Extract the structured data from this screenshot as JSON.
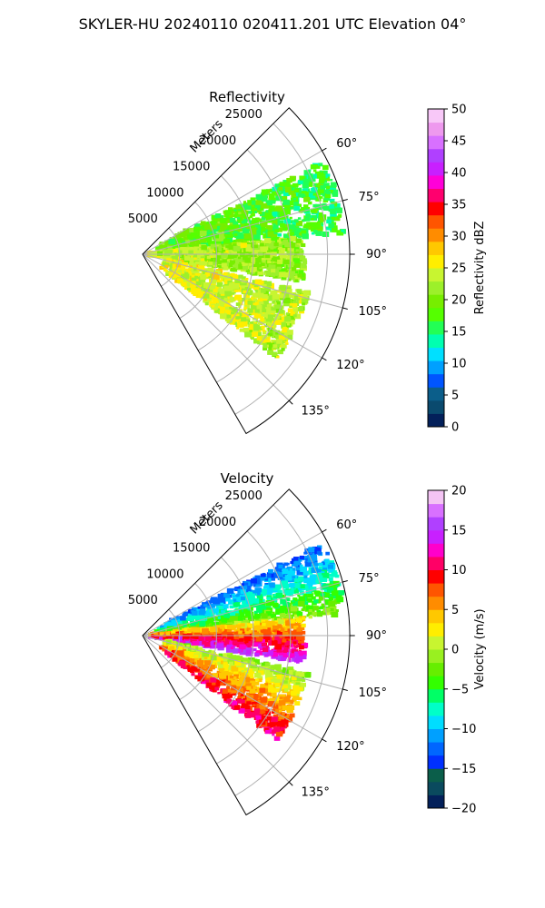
{
  "figure": {
    "suptitle": "SKYLER-HU  20240110  020411.201 UTC Elevation 04°"
  },
  "chart_data": [
    {
      "type": "heatmap",
      "subtype": "polar-sector-ppi",
      "title": "Reflectivity",
      "range_axis_label": "Meters",
      "range_ticks": [
        5000,
        10000,
        15000,
        20000,
        25000
      ],
      "range_tick_labels": [
        "5000",
        "10000",
        "15000",
        "20000",
        "25000"
      ],
      "range_lim": [
        0,
        28000
      ],
      "azimuth_lim_deg": [
        45,
        150
      ],
      "azimuth_ticks": [
        60,
        75,
        90,
        105,
        120,
        135
      ],
      "azimuth_tick_labels": [
        "60°",
        "75°",
        "90°",
        "105°",
        "120°",
        "135°"
      ],
      "grid": true,
      "colorbar": {
        "label": "Reflectivity dBZ",
        "min": 0,
        "max": 50,
        "ticks": [
          0,
          5,
          10,
          15,
          20,
          25,
          30,
          35,
          40,
          45,
          50
        ],
        "tick_labels": [
          "0",
          "5",
          "10",
          "15",
          "20",
          "25",
          "30",
          "35",
          "40",
          "45",
          "50"
        ],
        "colors": [
          "#03205a",
          "#0a4a6e",
          "#0b5e8a",
          "#0055ff",
          "#00a0ff",
          "#00e0ff",
          "#00ffb0",
          "#22ff55",
          "#55ff00",
          "#77ee00",
          "#9cf02a",
          "#c8f530",
          "#ffee00",
          "#ffc800",
          "#ff8c00",
          "#ff5500",
          "#ff0000",
          "#ff006e",
          "#ff00d8",
          "#c820ff",
          "#b040ff",
          "#d870ff",
          "#ee99ee",
          "#f8c8f8"
        ]
      },
      "bands": [
        {
          "name": "upper",
          "azimuth_deg": [
            63,
            84
          ],
          "range_m": [
            2000,
            27500
          ],
          "value_dBZ": 20
        },
        {
          "name": "core",
          "azimuth_deg": [
            84,
            100
          ],
          "range_m": [
            1000,
            22000
          ],
          "value_dBZ": 24
        },
        {
          "name": "lower",
          "azimuth_deg": [
            103,
            128
          ],
          "range_m": [
            3000,
            23000
          ],
          "value_dBZ": 26
        }
      ]
    },
    {
      "type": "heatmap",
      "subtype": "polar-sector-ppi",
      "title": "Velocity",
      "range_axis_label": "Meters",
      "range_ticks": [
        5000,
        10000,
        15000,
        20000,
        25000
      ],
      "range_tick_labels": [
        "5000",
        "10000",
        "15000",
        "20000",
        "25000"
      ],
      "range_lim": [
        0,
        28000
      ],
      "azimuth_lim_deg": [
        45,
        150
      ],
      "azimuth_ticks": [
        60,
        75,
        90,
        105,
        120,
        135
      ],
      "azimuth_tick_labels": [
        "60°",
        "75°",
        "90°",
        "105°",
        "120°",
        "135°"
      ],
      "grid": true,
      "colorbar": {
        "label": "Velocity (m/s)",
        "min": -20,
        "max": 20,
        "ticks": [
          -20,
          -15,
          -10,
          -5,
          0,
          5,
          10,
          15,
          20
        ],
        "tick_labels": [
          "−20",
          "−15",
          "−10",
          "−5",
          "0",
          "5",
          "10",
          "15",
          "20"
        ],
        "colors": [
          "#03205a",
          "#0a4a5e",
          "#0b5e4a",
          "#0030ff",
          "#0066ff",
          "#00a0ff",
          "#00ddff",
          "#00ffc8",
          "#00ff66",
          "#33ff00",
          "#66ee00",
          "#99f020",
          "#c8f530",
          "#ffee00",
          "#ffc800",
          "#ff8c00",
          "#ff5500",
          "#ff0000",
          "#ff0066",
          "#ff00cc",
          "#c820ff",
          "#b040ff",
          "#d870ff",
          "#f4c4f4"
        ]
      },
      "bands": [
        {
          "name": "upper",
          "azimuth_deg": [
            63,
            84
          ],
          "range_m": [
            2000,
            27500
          ],
          "value_ms": -7
        },
        {
          "name": "core",
          "azimuth_deg": [
            84,
            100
          ],
          "range_m": [
            1000,
            22000
          ],
          "value_ms": 9
        },
        {
          "name": "lower",
          "azimuth_deg": [
            103,
            128
          ],
          "range_m": [
            3000,
            23000
          ],
          "value_ms": 5
        }
      ]
    }
  ]
}
